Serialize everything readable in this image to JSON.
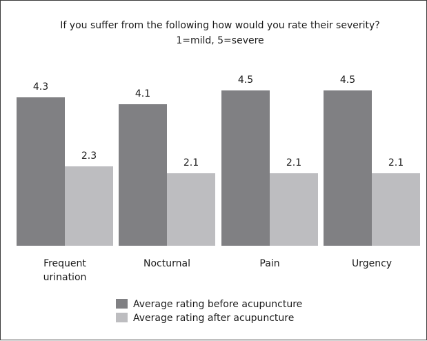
{
  "chart_data": {
    "type": "bar",
    "title": "If you suffer from the following how would you rate their severity?",
    "subtitle": "1=mild, 5=severe",
    "categories": [
      "Frequent urination",
      "Nocturnal",
      "Pain",
      "Urgency"
    ],
    "category_label_lines": [
      [
        "Frequent",
        "urination"
      ],
      [
        "Nocturnal"
      ],
      [
        "Pain"
      ],
      [
        "Urgency"
      ]
    ],
    "series": [
      {
        "name": "Average rating before acupuncture",
        "values": [
          4.3,
          4.1,
          4.5,
          4.5
        ],
        "color": "#808083"
      },
      {
        "name": "Average rating after acupuncture",
        "values": [
          2.3,
          2.1,
          2.1,
          2.1
        ],
        "color": "#bdbdc0"
      }
    ],
    "value_labels": [
      [
        "4.3",
        "4.1",
        "4.5",
        "4.5"
      ],
      [
        "2.3",
        "2.1",
        "2.1",
        "2.1"
      ]
    ],
    "ylim": [
      0,
      5
    ],
    "xlabel": "",
    "ylabel": "",
    "grid": false,
    "legend_position": "bottom-center"
  }
}
